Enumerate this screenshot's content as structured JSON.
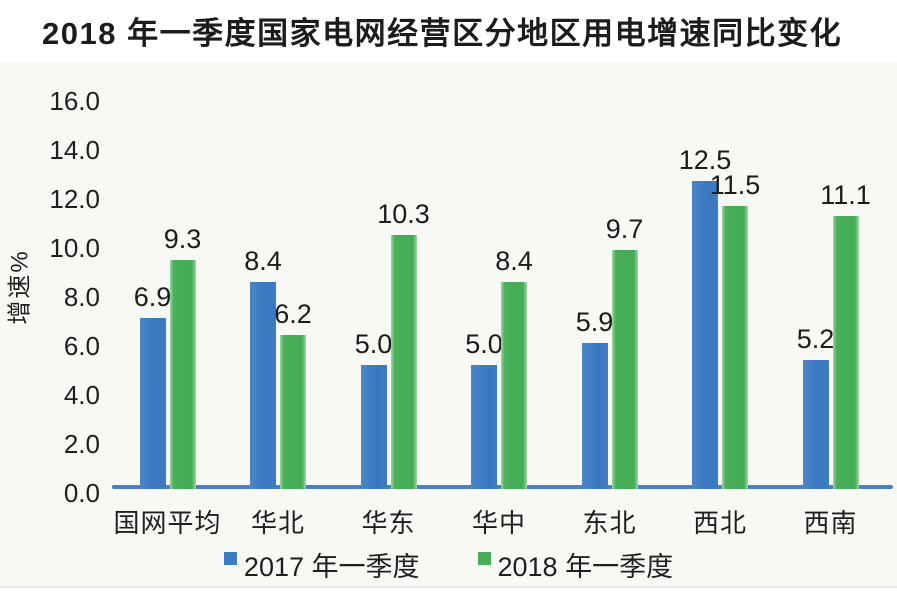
{
  "title": "2018 年一季度国家电网经营区分地区用电增速同比变化",
  "colors": {
    "series_2017_blue": "#3d7cc3",
    "series_2018_green": "#47ae57",
    "axis_line": "#4a7fc4",
    "panel_background": "#f8f8f5",
    "text": "#1f1f1f"
  },
  "chart_data": {
    "type": "bar",
    "title": "2018 年一季度国家电网经营区分地区用电增速同比变化",
    "xlabel": "",
    "ylabel": "增速%",
    "categories": [
      "国网平均",
      "华北",
      "华东",
      "华中",
      "东北",
      "西北",
      "西南"
    ],
    "series": [
      {
        "name": "2017 年一季度",
        "color": "#3d7cc3",
        "values": [
          6.9,
          8.4,
          5.0,
          5.0,
          5.9,
          12.5,
          5.2
        ]
      },
      {
        "name": "2018 年一季度",
        "color": "#47ae57",
        "values": [
          9.3,
          6.2,
          10.3,
          8.4,
          9.7,
          11.5,
          11.1
        ]
      }
    ],
    "ylim": [
      0,
      16
    ],
    "ytick_step": 2.0,
    "yticks": [
      0.0,
      2.0,
      4.0,
      6.0,
      8.0,
      10.0,
      12.0,
      14.0,
      16.0
    ],
    "ytick_label_format": "one-decimal",
    "grid": false,
    "value_labels": true,
    "legend_position": "bottom"
  }
}
